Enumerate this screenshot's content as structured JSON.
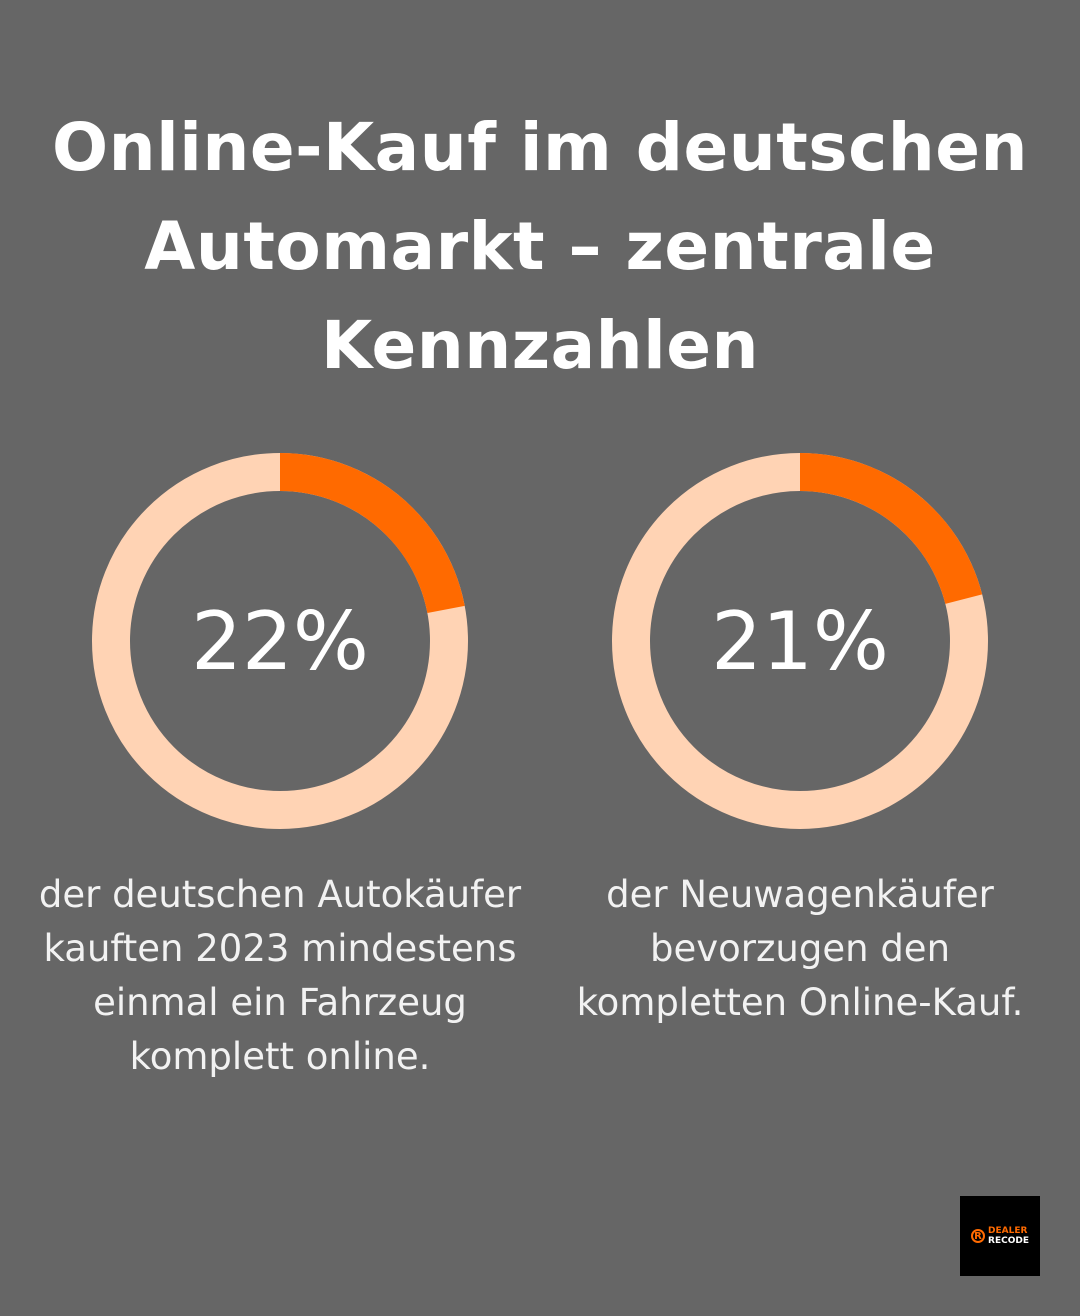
{
  "title": "Online-Kauf im deutschen Automarkt – zentrale Kennzahlen",
  "colors": {
    "background": "#666666",
    "accent": "#FF6A00",
    "track": "#FFD3B4"
  },
  "chart_data": [
    {
      "type": "pie",
      "variant": "donut",
      "value": 22,
      "max": 100,
      "label": "22%",
      "description": "der deutschen Autokäufer kauften 2023 mindestens einmal ein Fahrzeug komplett online."
    },
    {
      "type": "pie",
      "variant": "donut",
      "value": 21,
      "max": 100,
      "label": "21%",
      "description": "der Neuwagenkäufer bevorzugen den kompletten Online-Kauf."
    }
  ],
  "logo": {
    "line1": "DEALER",
    "line2": "RECODE",
    "icon": "r-circle-icon"
  }
}
